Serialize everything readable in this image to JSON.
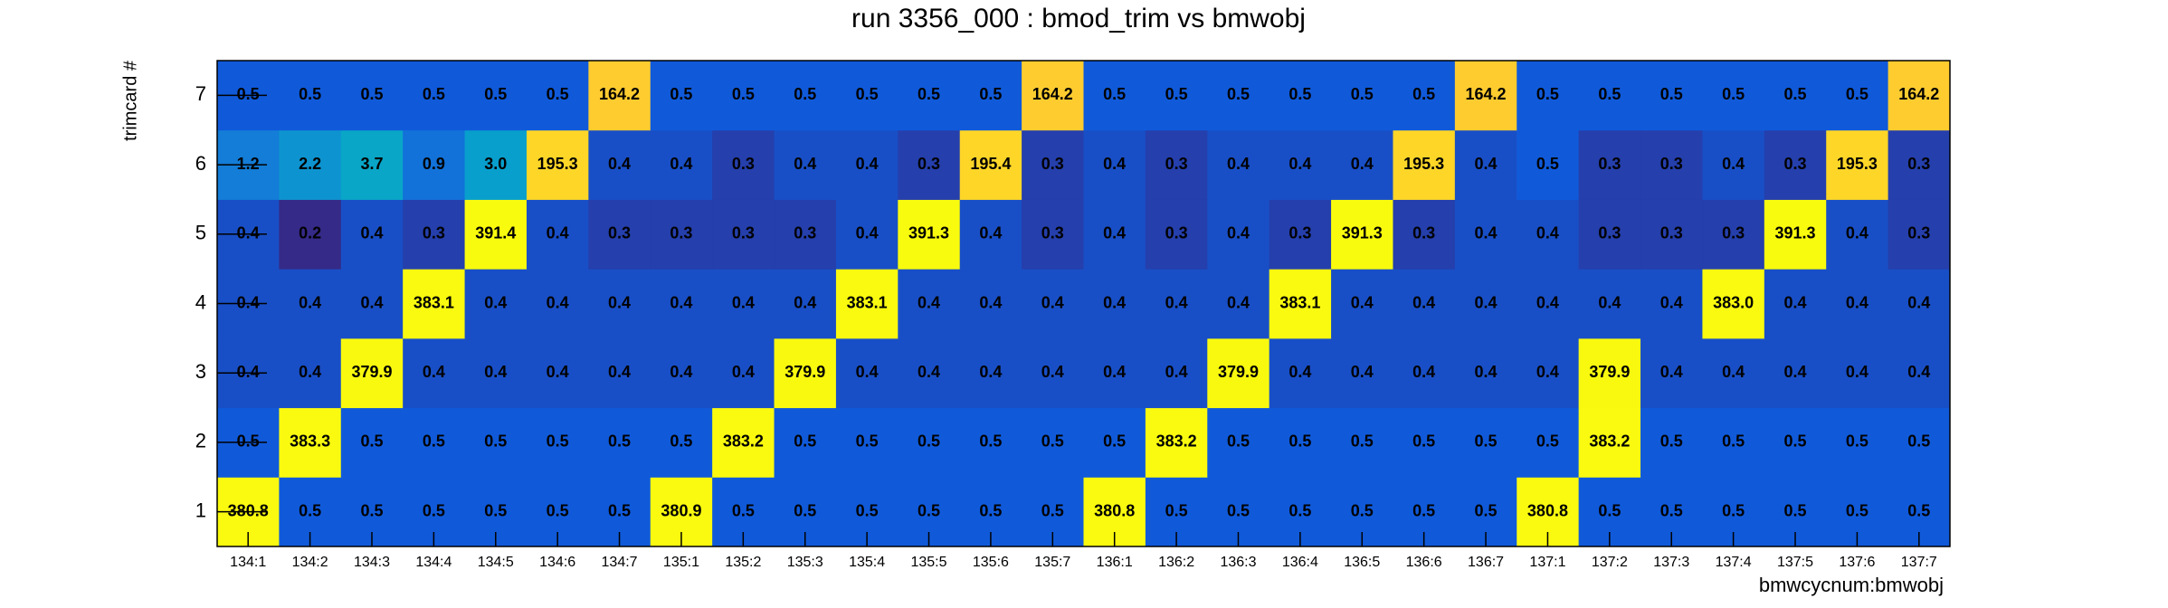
{
  "chart_data": {
    "type": "heatmap",
    "title": "run 3356_000 : bmod_trim vs bmwobj",
    "xlabel": "bmwcycnum:bmwobj",
    "ylabel": "trimcard #",
    "categories": [
      "134:1",
      "134:2",
      "134:3",
      "134:4",
      "134:5",
      "134:6",
      "134:7",
      "135:1",
      "135:2",
      "135:3",
      "135:4",
      "135:5",
      "135:6",
      "135:7",
      "136:1",
      "136:2",
      "136:3",
      "136:4",
      "136:5",
      "136:6",
      "136:7",
      "137:1",
      "137:2",
      "137:3",
      "137:4",
      "137:5",
      "137:6",
      "137:7"
    ],
    "ylim": [
      0.5,
      7.5
    ],
    "yticks": [
      1,
      2,
      3,
      4,
      5,
      6,
      7
    ],
    "zlim": [
      0.2,
      391.4
    ],
    "zlog": true,
    "palette": [
      "#352a87",
      "#0f5cdd",
      "#1481d6",
      "#06a4ca",
      "#2eb7a4",
      "#87bf77",
      "#d1bb59",
      "#fec832",
      "#f9fb0e"
    ],
    "values": [
      [
        380.8,
        0.5,
        0.5,
        0.5,
        0.5,
        0.5,
        0.5,
        380.9,
        0.5,
        0.5,
        0.5,
        0.5,
        0.5,
        0.5,
        380.8,
        0.5,
        0.5,
        0.5,
        0.5,
        0.5,
        0.5,
        380.8,
        0.5,
        0.5,
        0.5,
        0.5,
        0.5,
        0.5
      ],
      [
        0.5,
        383.3,
        0.5,
        0.5,
        0.5,
        0.5,
        0.5,
        0.5,
        383.2,
        0.5,
        0.5,
        0.5,
        0.5,
        0.5,
        0.5,
        383.2,
        0.5,
        0.5,
        0.5,
        0.5,
        0.5,
        0.5,
        383.2,
        0.5,
        0.5,
        0.5,
        0.5,
        0.5
      ],
      [
        0.4,
        0.4,
        379.9,
        0.4,
        0.4,
        0.4,
        0.4,
        0.4,
        0.4,
        379.9,
        0.4,
        0.4,
        0.4,
        0.4,
        0.4,
        0.4,
        379.9,
        0.4,
        0.4,
        0.4,
        0.4,
        0.4,
        379.9,
        0.4,
        0.4,
        0.4,
        0.4,
        0.4
      ],
      [
        0.4,
        0.4,
        0.4,
        383.1,
        0.4,
        0.4,
        0.4,
        0.4,
        0.4,
        0.4,
        383.1,
        0.4,
        0.4,
        0.4,
        0.4,
        0.4,
        0.4,
        383.1,
        0.4,
        0.4,
        0.4,
        0.4,
        0.4,
        0.4,
        383.0,
        0.4,
        0.4,
        0.4
      ],
      [
        0.4,
        0.2,
        0.4,
        0.3,
        391.4,
        0.4,
        0.3,
        0.3,
        0.3,
        0.3,
        0.4,
        391.3,
        0.4,
        0.3,
        0.4,
        0.3,
        0.4,
        0.3,
        391.3,
        0.3,
        0.4,
        0.4,
        0.3,
        0.3,
        0.3,
        391.3,
        0.4,
        0.3
      ],
      [
        1.2,
        2.2,
        3.7,
        0.9,
        3.0,
        195.3,
        0.4,
        0.4,
        0.3,
        0.4,
        0.4,
        0.3,
        195.4,
        0.3,
        0.4,
        0.3,
        0.4,
        0.4,
        0.4,
        195.3,
        0.4,
        0.5,
        0.3,
        0.3,
        0.4,
        0.3,
        195.3,
        0.3
      ],
      [
        0.5,
        0.5,
        0.5,
        0.5,
        0.5,
        0.5,
        164.2,
        0.5,
        0.5,
        0.5,
        0.5,
        0.5,
        0.5,
        164.2,
        0.5,
        0.5,
        0.5,
        0.5,
        0.5,
        0.5,
        164.2,
        0.5,
        0.5,
        0.5,
        0.5,
        0.5,
        0.5,
        164.2
      ]
    ],
    "value_labels": [
      [
        "380.8",
        "0.5",
        "0.5",
        "0.5",
        "0.5",
        "0.5",
        "0.5",
        "380.9",
        "0.5",
        "0.5",
        "0.5",
        "0.5",
        "0.5",
        "0.5",
        "380.8",
        "0.5",
        "0.5",
        "0.5",
        "0.5",
        "0.5",
        "0.5",
        "380.8",
        "0.5",
        "0.5",
        "0.5",
        "0.5",
        "0.5",
        "0.5"
      ],
      [
        "0.5",
        "383.3",
        "0.5",
        "0.5",
        "0.5",
        "0.5",
        "0.5",
        "0.5",
        "383.2",
        "0.5",
        "0.5",
        "0.5",
        "0.5",
        "0.5",
        "0.5",
        "383.2",
        "0.5",
        "0.5",
        "0.5",
        "0.5",
        "0.5",
        "0.5",
        "383.2",
        "0.5",
        "0.5",
        "0.5",
        "0.5",
        "0.5"
      ],
      [
        "0.4",
        "0.4",
        "379.9",
        "0.4",
        "0.4",
        "0.4",
        "0.4",
        "0.4",
        "0.4",
        "379.9",
        "0.4",
        "0.4",
        "0.4",
        "0.4",
        "0.4",
        "0.4",
        "379.9",
        "0.4",
        "0.4",
        "0.4",
        "0.4",
        "0.4",
        "379.9",
        "0.4",
        "0.4",
        "0.4",
        "0.4",
        "0.4"
      ],
      [
        "0.4",
        "0.4",
        "0.4",
        "383.1",
        "0.4",
        "0.4",
        "0.4",
        "0.4",
        "0.4",
        "0.4",
        "383.1",
        "0.4",
        "0.4",
        "0.4",
        "0.4",
        "0.4",
        "0.4",
        "383.1",
        "0.4",
        "0.4",
        "0.4",
        "0.4",
        "0.4",
        "0.4",
        "383.0",
        "0.4",
        "0.4",
        "0.4"
      ],
      [
        "0.4",
        "0.2",
        "0.4",
        "0.3",
        "391.4",
        "0.4",
        "0.3",
        "0.3",
        "0.3",
        "0.3",
        "0.4",
        "391.3",
        "0.4",
        "0.3",
        "0.4",
        "0.3",
        "0.4",
        "0.3",
        "391.3",
        "0.3",
        "0.4",
        "0.4",
        "0.3",
        "0.3",
        "0.3",
        "391.3",
        "0.4",
        "0.3"
      ],
      [
        "1.2",
        "2.2",
        "3.7",
        "0.9",
        "3.0",
        "195.3",
        "0.4",
        "0.4",
        "0.3",
        "0.4",
        "0.4",
        "0.3",
        "195.4",
        "0.3",
        "0.4",
        "0.3",
        "0.4",
        "0.4",
        "0.4",
        "195.3",
        "0.4",
        "0.5",
        "0.3",
        "0.3",
        "0.4",
        "0.3",
        "195.3",
        "0.3"
      ],
      [
        "0.5",
        "0.5",
        "0.5",
        "0.5",
        "0.5",
        "0.5",
        "164.2",
        "0.5",
        "0.5",
        "0.5",
        "0.5",
        "0.5",
        "0.5",
        "164.2",
        "0.5",
        "0.5",
        "0.5",
        "0.5",
        "0.5",
        "0.5",
        "164.2",
        "0.5",
        "0.5",
        "0.5",
        "0.5",
        "0.5",
        "0.5",
        "164.2"
      ]
    ]
  }
}
